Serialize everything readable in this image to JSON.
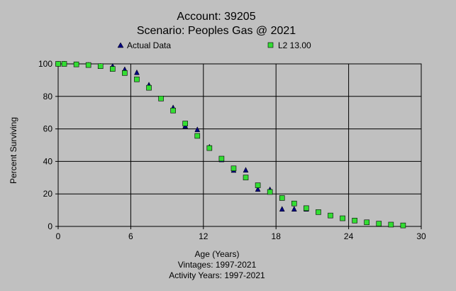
{
  "chart_data": {
    "type": "scatter",
    "title_line1": "Account: 39205",
    "title_line2": "Scenario: Peoples Gas @ 2021",
    "xlabel": "Age (Years)",
    "ylabel": "Percent Surviving",
    "footer_line1": "Vintages: 1997-2021",
    "footer_line2": "Activity Years: 1997-2021",
    "xlim": [
      0,
      30
    ],
    "ylim": [
      0,
      100
    ],
    "x_ticks": [
      0,
      6,
      12,
      18,
      24,
      30
    ],
    "y_ticks": [
      0,
      20,
      40,
      60,
      80,
      100
    ],
    "grid": true,
    "legend_position": "top",
    "series": [
      {
        "name": "Actual Data",
        "marker": "triangle",
        "color": "#000080",
        "x": [
          0,
          0.5,
          1.5,
          2.5,
          3.5,
          4.5,
          5.5,
          6.5,
          7.5,
          8.5,
          9.5,
          10.5,
          11.5,
          12.5,
          13.5,
          14.5,
          15.5,
          16.5,
          17.5,
          18.5,
          19.5,
          20.5
        ],
        "y": [
          100,
          100,
          99.6,
          99.3,
          98.6,
          98.5,
          96.5,
          94.6,
          87,
          78.5,
          73,
          61.7,
          59.5,
          48.8,
          41,
          34.5,
          34.6,
          22.8,
          22.6,
          10.6,
          10.6,
          10.6
        ]
      },
      {
        "name": "L2 13.00",
        "marker": "square",
        "color": "#33dd33",
        "x": [
          0,
          0.5,
          1.5,
          2.5,
          3.5,
          4.5,
          5.5,
          6.5,
          7.5,
          8.5,
          9.5,
          10.5,
          11.5,
          12.5,
          13.5,
          14.5,
          15.5,
          16.5,
          17.5,
          18.5,
          19.5,
          20.5,
          21.5,
          22.5,
          23.5,
          24.5,
          25.5,
          26.5,
          27.5,
          28.5
        ],
        "y": [
          100,
          100,
          99.7,
          99.3,
          98.6,
          96.9,
          94.4,
          90.5,
          85.3,
          78.7,
          71.3,
          63.3,
          55.7,
          48.2,
          41.7,
          35.7,
          30.1,
          25.3,
          21.2,
          17.5,
          14.1,
          11.2,
          8.8,
          6.7,
          5.0,
          3.6,
          2.5,
          1.7,
          1.1,
          0.6
        ]
      }
    ]
  }
}
